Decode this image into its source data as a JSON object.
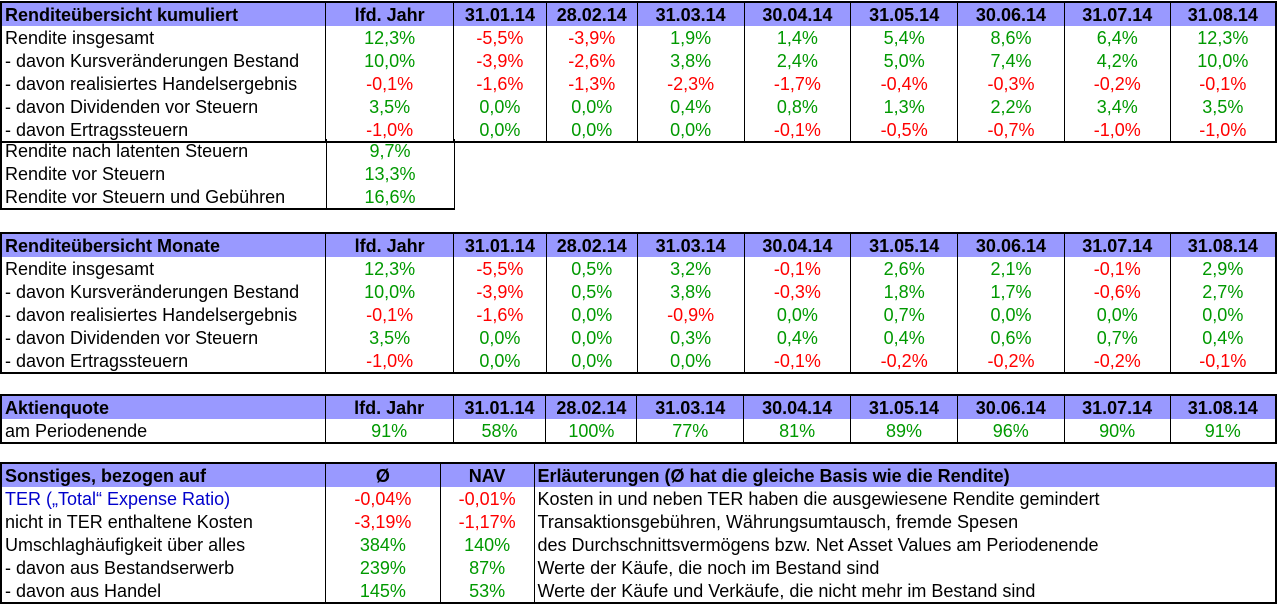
{
  "colors": {
    "header_bg": "#9999FF",
    "positive": "#009900",
    "negative": "#FF0000",
    "link_text": "#0000CC",
    "border": "#000000"
  },
  "columns": {
    "period_headers": [
      "lfd. Jahr",
      "31.01.14",
      "28.02.14",
      "31.03.14",
      "30.04.14",
      "31.05.14",
      "30.06.14",
      "31.07.14",
      "31.08.14"
    ]
  },
  "table_kumuliert": {
    "title": "Renditeübersicht kumuliert",
    "rows": [
      {
        "label": "Rendite insgesamt",
        "values": [
          "12,3%",
          "-5,5%",
          "-3,9%",
          "1,9%",
          "1,4%",
          "5,4%",
          "8,6%",
          "6,4%",
          "12,3%"
        ]
      },
      {
        "label": "- davon Kursveränderungen Bestand",
        "values": [
          "10,0%",
          "-3,9%",
          "-2,6%",
          "3,8%",
          "2,4%",
          "5,0%",
          "7,4%",
          "4,2%",
          "10,0%"
        ]
      },
      {
        "label": "- davon realisiertes Handelsergebnis",
        "values": [
          "-0,1%",
          "-1,6%",
          "-1,3%",
          "-2,3%",
          "-1,7%",
          "-0,4%",
          "-0,3%",
          "-0,2%",
          "-0,1%"
        ]
      },
      {
        "label": "- davon Dividenden vor Steuern",
        "values": [
          "3,5%",
          "0,0%",
          "0,0%",
          "0,4%",
          "0,8%",
          "1,3%",
          "2,2%",
          "3,4%",
          "3,5%"
        ]
      },
      {
        "label": "- davon Ertragssteuern",
        "values": [
          "-1,0%",
          "0,0%",
          "0,0%",
          "0,0%",
          "-0,1%",
          "-0,5%",
          "-0,7%",
          "-1,0%",
          "-1,0%"
        ]
      }
    ]
  },
  "table_summary": {
    "rows": [
      {
        "label": "Rendite nach latenten Steuern",
        "value": "9,7%"
      },
      {
        "label": "Rendite vor Steuern",
        "value": "13,3%"
      },
      {
        "label": "Rendite vor Steuern und Gebühren",
        "value": "16,6%"
      }
    ]
  },
  "table_monate": {
    "title": "Renditeübersicht Monate",
    "rows": [
      {
        "label": "Rendite insgesamt",
        "values": [
          "12,3%",
          "-5,5%",
          "0,5%",
          "3,2%",
          "-0,1%",
          "2,6%",
          "2,1%",
          "-0,1%",
          "2,9%"
        ]
      },
      {
        "label": "- davon Kursveränderungen Bestand",
        "values": [
          "10,0%",
          "-3,9%",
          "0,5%",
          "3,8%",
          "-0,3%",
          "1,8%",
          "1,7%",
          "-0,6%",
          "2,7%"
        ]
      },
      {
        "label": "- davon realisiertes Handelsergebnis",
        "values": [
          "-0,1%",
          "-1,6%",
          "0,0%",
          "-0,9%",
          "0,0%",
          "0,7%",
          "0,0%",
          "0,0%",
          "0,0%"
        ]
      },
      {
        "label": "- davon Dividenden vor Steuern",
        "values": [
          "3,5%",
          "0,0%",
          "0,0%",
          "0,3%",
          "0,4%",
          "0,4%",
          "0,6%",
          "0,7%",
          "0,4%"
        ]
      },
      {
        "label": "- davon Ertragssteuern",
        "values": [
          "-1,0%",
          "0,0%",
          "0,0%",
          "0,0%",
          "-0,1%",
          "-0,2%",
          "-0,2%",
          "-0,2%",
          "-0,1%"
        ]
      }
    ]
  },
  "table_aktienquote": {
    "title": "Aktienquote",
    "rows": [
      {
        "label": "am Periodenende",
        "values": [
          "91%",
          "58%",
          "100%",
          "77%",
          "81%",
          "89%",
          "96%",
          "90%",
          "91%"
        ]
      }
    ]
  },
  "table_sonstiges": {
    "title": "Sonstiges, bezogen auf",
    "col_headers": [
      "Ø",
      "NAV"
    ],
    "explain_header": "Erläuterungen (Ø hat die gleiche Basis wie die Rendite)",
    "rows": [
      {
        "label": "TER („Total“ Expense Ratio)",
        "label_style": "link",
        "avg": "-0,04%",
        "nav": "-0,01%",
        "explain": "Kosten in und neben TER haben die ausgewiesene Rendite gemindert"
      },
      {
        "label": "nicht in TER enthaltene Kosten",
        "label_style": "plain",
        "avg": "-3,19%",
        "nav": "-1,17%",
        "explain": "Transaktionsgebühren, Währungsumtausch, fremde Spesen"
      },
      {
        "label": "Umschlaghäufigkeit über alles",
        "label_style": "plain",
        "avg": "384%",
        "nav": "140%",
        "explain": "des Durchschnittsvermögens bzw. Net Asset Values am Periodenende"
      },
      {
        "label": "- davon aus Bestandserwerb",
        "label_style": "plain",
        "avg": "239%",
        "nav": "87%",
        "explain": "Werte der Käufe, die noch im Bestand sind"
      },
      {
        "label": "- davon aus Handel",
        "label_style": "plain",
        "avg": "145%",
        "nav": "53%",
        "explain": "Werte der Käufe und Verkäufe, die nicht mehr im Bestand sind"
      }
    ]
  }
}
